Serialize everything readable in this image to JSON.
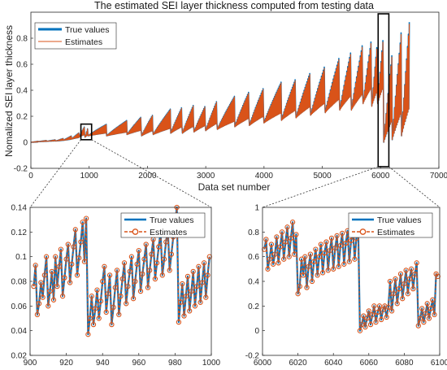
{
  "colors": {
    "true_series": "#0072BD",
    "estimate_series": "#D95319",
    "axis": "#262626",
    "zoom_box": "#000000"
  },
  "chart_data": [
    {
      "id": "main",
      "type": "line",
      "title": "The estimated SEI layer thickness computed from testing data",
      "xlabel": "Data set number",
      "ylabel": "Nomalized SEI layer thickness",
      "xlim": [
        0,
        7000
      ],
      "ylim": [
        -0.2,
        1
      ],
      "xticks": [
        0,
        1000,
        2000,
        3000,
        4000,
        5000,
        6000,
        7000
      ],
      "yticks": [
        -0.2,
        0,
        0.2,
        0.4,
        0.6,
        0.8
      ],
      "grid": false,
      "legend_position": "top-left",
      "series": [
        {
          "name": "True values",
          "style": "solid-thick"
        },
        {
          "name": "Estimates",
          "style": "solid-thin"
        }
      ],
      "segments": [
        {
          "x0": 0,
          "x1": 130,
          "ymin": 0,
          "ymax": 0.008
        },
        {
          "x0": 130,
          "x1": 280,
          "ymin": 0.005,
          "ymax": 0.015
        },
        {
          "x0": 280,
          "x1": 430,
          "ymin": 0.008,
          "ymax": 0.02
        },
        {
          "x0": 430,
          "x1": 560,
          "ymin": 0.01,
          "ymax": 0.03
        },
        {
          "x0": 560,
          "x1": 700,
          "ymin": 0.015,
          "ymax": 0.05
        },
        {
          "x0": 700,
          "x1": 830,
          "ymin": 0.025,
          "ymax": 0.075
        },
        {
          "x0": 830,
          "x1": 930,
          "ymin": 0.04,
          "ymax": 0.13
        },
        {
          "x0": 930,
          "x1": 980,
          "ymin": 0.04,
          "ymax": 0.115
        },
        {
          "x0": 980,
          "x1": 1300,
          "ymin": 0.05,
          "ymax": 0.14
        },
        {
          "x0": 1300,
          "x1": 1650,
          "ymin": 0.05,
          "ymax": 0.17
        },
        {
          "x0": 1650,
          "x1": 1900,
          "ymin": 0.06,
          "ymax": 0.2
        },
        {
          "x0": 1900,
          "x1": 2100,
          "ymin": 0.05,
          "ymax": 0.22
        },
        {
          "x0": 2100,
          "x1": 2400,
          "ymin": 0.06,
          "ymax": 0.26
        },
        {
          "x0": 2400,
          "x1": 2600,
          "ymin": 0.07,
          "ymax": 0.28
        },
        {
          "x0": 2600,
          "x1": 2800,
          "ymin": 0.07,
          "ymax": 0.3
        },
        {
          "x0": 2800,
          "x1": 3000,
          "ymin": 0.08,
          "ymax": 0.29
        },
        {
          "x0": 3000,
          "x1": 3200,
          "ymin": 0.09,
          "ymax": 0.33
        },
        {
          "x0": 3200,
          "x1": 3500,
          "ymin": 0.1,
          "ymax": 0.36
        },
        {
          "x0": 3500,
          "x1": 3750,
          "ymin": 0.12,
          "ymax": 0.4
        },
        {
          "x0": 3750,
          "x1": 4000,
          "ymin": 0.13,
          "ymax": 0.43
        },
        {
          "x0": 4000,
          "x1": 4300,
          "ymin": 0.15,
          "ymax": 0.47
        },
        {
          "x0": 4300,
          "x1": 4550,
          "ymin": 0.17,
          "ymax": 0.5
        },
        {
          "x0": 4550,
          "x1": 4800,
          "ymin": 0.19,
          "ymax": 0.55
        },
        {
          "x0": 4800,
          "x1": 5050,
          "ymin": 0.21,
          "ymax": 0.6
        },
        {
          "x0": 5050,
          "x1": 5300,
          "ymin": 0.23,
          "ymax": 0.67
        },
        {
          "x0": 5300,
          "x1": 5500,
          "ymin": 0.25,
          "ymax": 0.72
        },
        {
          "x0": 5500,
          "x1": 5700,
          "ymin": 0.25,
          "ymax": 0.78
        },
        {
          "x0": 5700,
          "x1": 5850,
          "ymin": 0.3,
          "ymax": 0.82
        },
        {
          "x0": 5850,
          "x1": 5950,
          "ymin": 0.28,
          "ymax": 0.8
        },
        {
          "x0": 5950,
          "x1": 6055,
          "ymin": 0.3,
          "ymax": 0.86
        },
        {
          "x0": 6055,
          "x1": 6200,
          "ymin": 0.0,
          "ymax": 0.7
        },
        {
          "x0": 6200,
          "x1": 6360,
          "ymin": 0.02,
          "ymax": 0.88
        },
        {
          "x0": 6360,
          "x1": 6500,
          "ymin": 0.05,
          "ymax": 0.97
        }
      ],
      "zoom_boxes": [
        {
          "xlim": [
            900,
            1000
          ],
          "ylim": [
            0.02,
            0.14
          ]
        },
        {
          "xlim": [
            6000,
            6100
          ],
          "ylim": [
            -0.2,
            1.0
          ]
        }
      ]
    },
    {
      "id": "zoom1",
      "type": "line",
      "xlim": [
        900,
        1000
      ],
      "ylim": [
        0.02,
        0.14
      ],
      "xticks": [
        900,
        920,
        940,
        960,
        980,
        1000
      ],
      "yticks": [
        0.02,
        0.04,
        0.06,
        0.08,
        0.1,
        0.12,
        0.14
      ],
      "legend_position": "top-right",
      "series": [
        {
          "name": "True values",
          "style": "solid"
        },
        {
          "name": "Estimates",
          "style": "dashed-circles"
        }
      ],
      "x": [
        902,
        903,
        904,
        905,
        906,
        907,
        908,
        909,
        910,
        911,
        912,
        913,
        914,
        915,
        916,
        917,
        918,
        919,
        920,
        921,
        922,
        923,
        924,
        925,
        926,
        927,
        928,
        929,
        930,
        931,
        932,
        933,
        934,
        935,
        936,
        937,
        938,
        939,
        940,
        941,
        942,
        943,
        944,
        945,
        946,
        947,
        948,
        949,
        950,
        951,
        952,
        953,
        954,
        955,
        956,
        957,
        958,
        959,
        960,
        961,
        962,
        963,
        964,
        965,
        966,
        967,
        968,
        969,
        970,
        971,
        972,
        973,
        974,
        975,
        976,
        977,
        978,
        979,
        980,
        981,
        982,
        983,
        984,
        985,
        986,
        987,
        988,
        989,
        990,
        991,
        992,
        993,
        994,
        995,
        996,
        997,
        998,
        999
      ],
      "y": [
        0.076,
        0.093,
        0.053,
        0.062,
        0.079,
        0.067,
        0.085,
        0.1,
        0.06,
        0.072,
        0.088,
        0.065,
        0.1,
        0.076,
        0.092,
        0.106,
        0.068,
        0.083,
        0.098,
        0.11,
        0.079,
        0.094,
        0.108,
        0.122,
        0.085,
        0.099,
        0.112,
        0.128,
        0.096,
        0.131,
        0.037,
        0.05,
        0.068,
        0.045,
        0.058,
        0.073,
        0.05,
        0.064,
        0.08,
        0.092,
        0.055,
        0.07,
        0.085,
        0.045,
        0.059,
        0.075,
        0.089,
        0.053,
        0.068,
        0.082,
        0.095,
        0.062,
        0.076,
        0.088,
        0.1,
        0.066,
        0.08,
        0.094,
        0.105,
        0.072,
        0.086,
        0.098,
        0.11,
        0.075,
        0.089,
        0.102,
        0.114,
        0.082,
        0.095,
        0.108,
        0.12,
        0.085,
        0.098,
        0.112,
        0.123,
        0.089,
        0.102,
        0.116,
        0.127,
        0.14,
        0.047,
        0.063,
        0.078,
        0.052,
        0.068,
        0.084,
        0.056,
        0.072,
        0.088,
        0.06,
        0.076,
        0.092,
        0.063,
        0.079,
        0.095,
        0.067,
        0.085,
        0.1
      ]
    },
    {
      "id": "zoom2",
      "type": "line",
      "xlim": [
        6000,
        6100
      ],
      "ylim": [
        -0.2,
        1
      ],
      "xticks": [
        6000,
        6020,
        6040,
        6060,
        6080,
        6100
      ],
      "yticks": [
        -0.2,
        0,
        0.2,
        0.4,
        0.6,
        0.8,
        1
      ],
      "legend_position": "top-right",
      "series": [
        {
          "name": "True values",
          "style": "solid"
        },
        {
          "name": "Estimates",
          "style": "dashed-circles"
        }
      ],
      "x": [
        6001,
        6002,
        6003,
        6004,
        6005,
        6006,
        6007,
        6008,
        6009,
        6010,
        6011,
        6012,
        6013,
        6014,
        6015,
        6016,
        6017,
        6018,
        6019,
        6020,
        6021,
        6022,
        6023,
        6024,
        6025,
        6026,
        6027,
        6028,
        6029,
        6030,
        6031,
        6032,
        6033,
        6034,
        6035,
        6036,
        6037,
        6038,
        6039,
        6040,
        6041,
        6042,
        6043,
        6044,
        6045,
        6046,
        6047,
        6048,
        6049,
        6050,
        6051,
        6052,
        6053,
        6054,
        6055,
        6056,
        6057,
        6058,
        6059,
        6060,
        6061,
        6062,
        6063,
        6064,
        6065,
        6066,
        6067,
        6068,
        6069,
        6070,
        6071,
        6072,
        6073,
        6074,
        6075,
        6076,
        6077,
        6078,
        6079,
        6080,
        6081,
        6082,
        6083,
        6084,
        6085,
        6086,
        6087,
        6088,
        6089,
        6090,
        6091,
        6092,
        6093,
        6094,
        6095,
        6096,
        6097,
        6098,
        6099
      ],
      "y": [
        0.66,
        0.74,
        0.5,
        0.58,
        0.7,
        0.54,
        0.62,
        0.76,
        0.55,
        0.68,
        0.8,
        0.58,
        0.72,
        0.84,
        0.6,
        0.75,
        0.88,
        0.62,
        0.78,
        0.3,
        0.36,
        0.58,
        0.45,
        0.6,
        0.35,
        0.52,
        0.62,
        0.4,
        0.56,
        0.66,
        0.45,
        0.6,
        0.7,
        0.47,
        0.63,
        0.72,
        0.49,
        0.65,
        0.75,
        0.5,
        0.67,
        0.77,
        0.52,
        0.69,
        0.79,
        0.54,
        0.71,
        0.81,
        0.56,
        0.73,
        0.82,
        0.58,
        0.75,
        0.85,
        0.0,
        0.05,
        0.12,
        0.03,
        0.1,
        0.16,
        0.05,
        0.13,
        0.2,
        0.07,
        0.15,
        0.2,
        0.09,
        0.17,
        0.2,
        0.11,
        0.19,
        0.4,
        0.16,
        0.3,
        0.42,
        0.22,
        0.34,
        0.46,
        0.26,
        0.38,
        0.49,
        0.3,
        0.42,
        0.5,
        0.34,
        0.46,
        0.55,
        0.04,
        0.1,
        0.18,
        0.07,
        0.14,
        0.22,
        0.1,
        0.18,
        0.25,
        0.13,
        0.46,
        0.44
      ]
    }
  ]
}
